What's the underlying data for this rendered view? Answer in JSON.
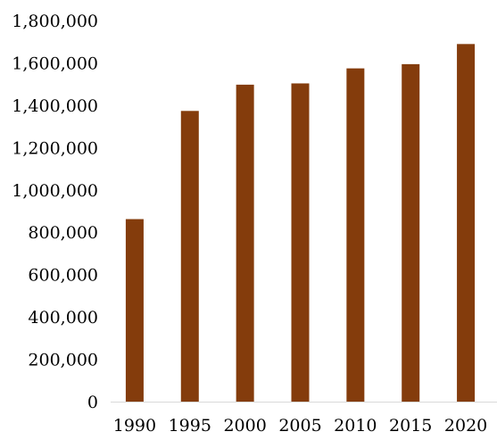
{
  "chart_data": {
    "type": "bar",
    "title": "",
    "xlabel": "",
    "ylabel": "",
    "categories": [
      "1990",
      "1995",
      "2000",
      "2005",
      "2010",
      "2015",
      "2020"
    ],
    "values": [
      862000,
      1373000,
      1497000,
      1503000,
      1574000,
      1594000,
      1689000
    ],
    "ylim": [
      0,
      1800000
    ],
    "yticks": [
      0,
      200000,
      400000,
      600000,
      800000,
      1000000,
      1200000,
      1400000,
      1600000,
      1800000
    ],
    "ytick_labels": [
      "0",
      "200,000",
      "400,000",
      "600,000",
      "800,000",
      "1,000,000",
      "1,200,000",
      "1,400,000",
      "1,600,000",
      "1,800,000"
    ],
    "grid": false,
    "legend": "none",
    "bar_color": "#843c0c"
  }
}
